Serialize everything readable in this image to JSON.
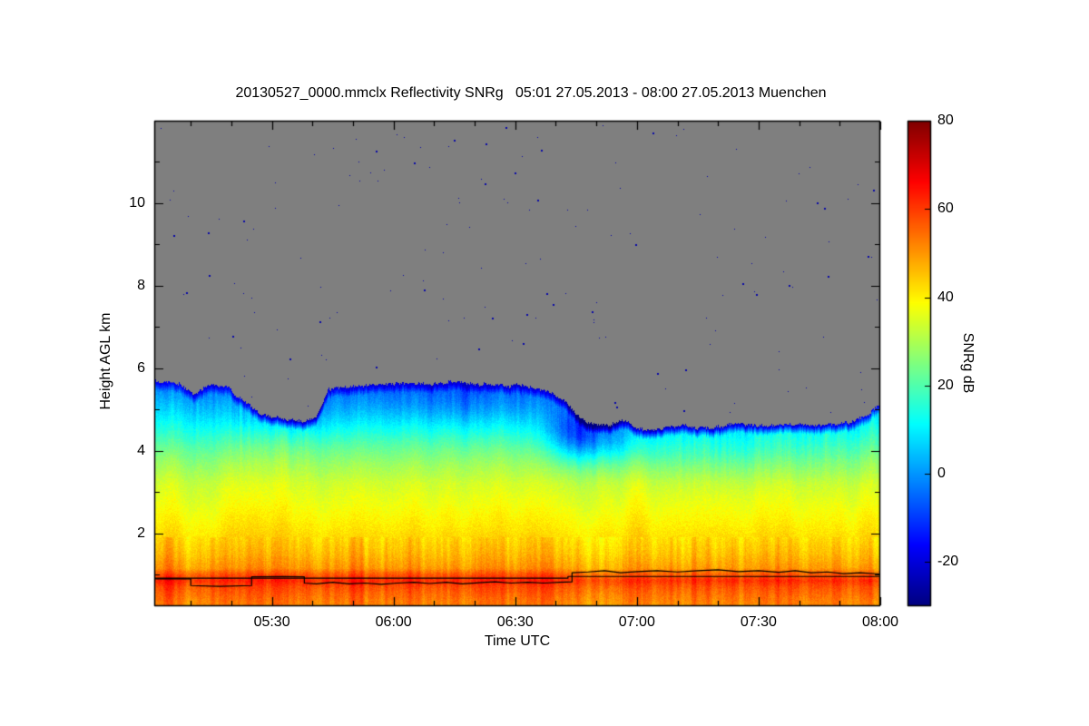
{
  "chart_data": {
    "type": "heatmap",
    "title": "20130527_0000.mmclx Reflectivity SNRg   05:01 27.05.2013 - 08:00 27.05.2013 Muenchen",
    "xlabel": "Time UTC",
    "ylabel": "Height AGL km",
    "colorbar_label": "SNRg dB",
    "colormap": "jet",
    "nodata_color": "#7f7f7f",
    "background_color": "#ffffff",
    "value_range": [
      -30,
      80
    ],
    "x_axis": {
      "range_min": [
        0,
        179
      ],
      "start_time": "05:01",
      "end_time": "08:00",
      "minor_start": 9,
      "minor_step": 10,
      "ticks": [
        {
          "m": 29,
          "label": "05:30"
        },
        {
          "m": 59,
          "label": "06:00"
        },
        {
          "m": 89,
          "label": "06:30"
        },
        {
          "m": 119,
          "label": "07:00"
        },
        {
          "m": 149,
          "label": "07:30"
        },
        {
          "m": 179,
          "label": "08:00"
        }
      ]
    },
    "y_axis": {
      "range_km": [
        0.24,
        12.0
      ],
      "ticks": [
        {
          "km": 2,
          "label": "2"
        },
        {
          "km": 4,
          "label": "4"
        },
        {
          "km": 6,
          "label": "6"
        },
        {
          "km": 8,
          "label": "8"
        },
        {
          "km": 10,
          "label": "10"
        }
      ]
    },
    "colorbar_ticks": [
      {
        "value": 80,
        "label": "80"
      },
      {
        "value": 60,
        "label": "60"
      },
      {
        "value": 40,
        "label": "40"
      },
      {
        "value": 20,
        "label": "20"
      },
      {
        "value": 0,
        "label": "0"
      },
      {
        "value": -20,
        "label": "-20"
      }
    ],
    "cloud_top_km": [
      [
        0,
        5.7
      ],
      [
        6,
        5.62
      ],
      [
        10,
        5.35
      ],
      [
        13,
        5.6
      ],
      [
        18,
        5.55
      ],
      [
        22,
        5.2
      ],
      [
        27,
        4.85
      ],
      [
        33,
        4.75
      ],
      [
        37,
        4.72
      ],
      [
        40,
        4.85
      ],
      [
        43,
        5.5
      ],
      [
        48,
        5.55
      ],
      [
        55,
        5.6
      ],
      [
        65,
        5.62
      ],
      [
        75,
        5.65
      ],
      [
        85,
        5.6
      ],
      [
        92,
        5.55
      ],
      [
        97,
        5.45
      ],
      [
        101,
        5.2
      ],
      [
        104,
        4.9
      ],
      [
        107,
        4.65
      ],
      [
        112,
        4.6
      ],
      [
        116,
        4.75
      ],
      [
        119,
        4.55
      ],
      [
        124,
        4.5
      ],
      [
        130,
        4.6
      ],
      [
        137,
        4.55
      ],
      [
        144,
        4.65
      ],
      [
        150,
        4.6
      ],
      [
        157,
        4.65
      ],
      [
        163,
        4.6
      ],
      [
        168,
        4.65
      ],
      [
        172,
        4.7
      ],
      [
        176,
        4.85
      ],
      [
        179,
        5.15
      ]
    ],
    "profile_db": [
      [
        0.24,
        52
      ],
      [
        0.5,
        55
      ],
      [
        0.7,
        58
      ],
      [
        0.85,
        62
      ],
      [
        1.0,
        57
      ],
      [
        1.15,
        50
      ],
      [
        1.5,
        46
      ],
      [
        2.0,
        42
      ],
      [
        2.6,
        38
      ],
      [
        3.2,
        34
      ],
      [
        3.7,
        28
      ],
      [
        4.1,
        22
      ],
      [
        4.5,
        15
      ],
      [
        4.8,
        10
      ],
      [
        5.1,
        5
      ],
      [
        5.4,
        0
      ],
      [
        5.7,
        -6
      ],
      [
        12,
        -12
      ]
    ],
    "anomalies": [
      {
        "t": 104,
        "h": 4.4,
        "dt": 5,
        "dh": 0.45,
        "dv": -17
      },
      {
        "t": 112,
        "h": 4.3,
        "dt": 7,
        "dh": 0.4,
        "dv": -10
      },
      {
        "t": 33,
        "h": 4.95,
        "dt": 9,
        "dh": 0.4,
        "dv": -8
      },
      {
        "t": 140,
        "h": 4.1,
        "dt": 22,
        "dh": 0.5,
        "dv": -6
      },
      {
        "t": 89,
        "h": 5.1,
        "dt": 18,
        "dh": 0.5,
        "dv": -4
      },
      {
        "t": 70,
        "h": 5.2,
        "dt": 15,
        "dh": 0.4,
        "dv": -4
      }
    ],
    "speckles": {
      "count": 160,
      "color": "#0808a8"
    },
    "noise": {
      "column_amp": 3,
      "streak_amp": 7,
      "pixel_amp": 2.2,
      "top_jitter_km": 0.07
    },
    "lines": [
      {
        "name": "level-line-wiggly",
        "points": [
          [
            0,
            0.9
          ],
          [
            9,
            0.9
          ],
          [
            9,
            0.74
          ],
          [
            16,
            0.72
          ],
          [
            24,
            0.74
          ],
          [
            24,
            0.95
          ],
          [
            32,
            0.96
          ],
          [
            37,
            0.95
          ],
          [
            37,
            0.8
          ],
          [
            40,
            0.78
          ],
          [
            44,
            0.82
          ],
          [
            48,
            0.78
          ],
          [
            52,
            0.8
          ],
          [
            56,
            0.77
          ],
          [
            60,
            0.8
          ],
          [
            64,
            0.82
          ],
          [
            68,
            0.79
          ],
          [
            72,
            0.82
          ],
          [
            76,
            0.78
          ],
          [
            80,
            0.81
          ],
          [
            84,
            0.83
          ],
          [
            88,
            0.8
          ],
          [
            92,
            0.82
          ],
          [
            96,
            0.8
          ],
          [
            100,
            0.82
          ],
          [
            103,
            0.83
          ],
          [
            103,
            1.05
          ],
          [
            107,
            1.07
          ],
          [
            111,
            1.1
          ],
          [
            115,
            1.05
          ],
          [
            119,
            1.08
          ],
          [
            124,
            1.1
          ],
          [
            129,
            1.07
          ],
          [
            134,
            1.1
          ],
          [
            139,
            1.12
          ],
          [
            144,
            1.08
          ],
          [
            149,
            1.1
          ],
          [
            154,
            1.06
          ],
          [
            158,
            1.1
          ],
          [
            162,
            1.05
          ],
          [
            166,
            1.07
          ],
          [
            170,
            1.03
          ],
          [
            174,
            1.05
          ],
          [
            179,
            1.02
          ]
        ]
      },
      {
        "name": "level-line-step",
        "points": [
          [
            0,
            0.92
          ],
          [
            102,
            0.92
          ],
          [
            102,
            0.96
          ],
          [
            179,
            0.96
          ]
        ]
      }
    ]
  }
}
